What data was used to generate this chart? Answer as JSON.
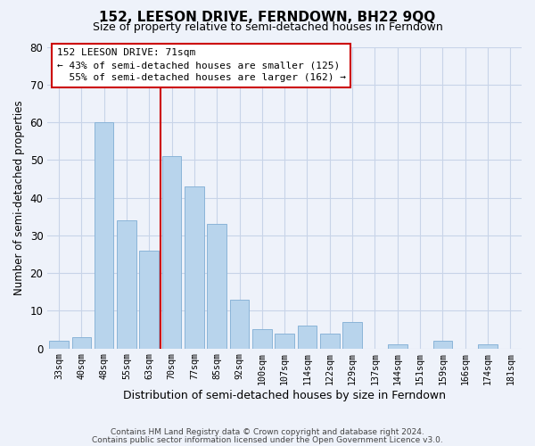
{
  "title": "152, LEESON DRIVE, FERNDOWN, BH22 9QQ",
  "subtitle": "Size of property relative to semi-detached houses in Ferndown",
  "xlabel": "Distribution of semi-detached houses by size in Ferndown",
  "ylabel": "Number of semi-detached properties",
  "bins": [
    "33sqm",
    "40sqm",
    "48sqm",
    "55sqm",
    "63sqm",
    "70sqm",
    "77sqm",
    "85sqm",
    "92sqm",
    "100sqm",
    "107sqm",
    "114sqm",
    "122sqm",
    "129sqm",
    "137sqm",
    "144sqm",
    "151sqm",
    "159sqm",
    "166sqm",
    "174sqm",
    "181sqm"
  ],
  "values": [
    2,
    3,
    60,
    34,
    26,
    51,
    43,
    33,
    13,
    5,
    4,
    6,
    4,
    7,
    0,
    1,
    0,
    2,
    0,
    1,
    0
  ],
  "bar_color": "#b8d4ec",
  "bar_edge_color": "#8ab4d8",
  "vline_color": "#cc0000",
  "vline_x_index": 5,
  "annotation_line1": "152 LEESON DRIVE: 71sqm",
  "annotation_line2": "← 43% of semi-detached houses are smaller (125)",
  "annotation_line3": "  55% of semi-detached houses are larger (162) →",
  "annotation_box_color": "#ffffff",
  "annotation_box_edge": "#cc0000",
  "ylim": [
    0,
    80
  ],
  "yticks": [
    0,
    10,
    20,
    30,
    40,
    50,
    60,
    70,
    80
  ],
  "footer_line1": "Contains HM Land Registry data © Crown copyright and database right 2024.",
  "footer_line2": "Contains public sector information licensed under the Open Government Licence v3.0.",
  "bg_color": "#eef2fa",
  "grid_color": "#c8d4e8",
  "title_fontsize": 11,
  "subtitle_fontsize": 9
}
